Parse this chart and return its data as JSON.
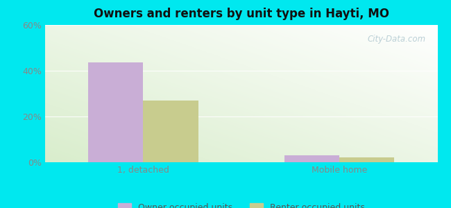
{
  "title": "Owners and renters by unit type in Hayti, MO",
  "categories": [
    "1, detached",
    "Mobile home"
  ],
  "owner_values": [
    43.5,
    3.0
  ],
  "renter_values": [
    27.0,
    2.0
  ],
  "owner_color": "#c9aed6",
  "renter_color": "#c8cc8e",
  "ylim": [
    0,
    60
  ],
  "yticks": [
    0,
    20,
    40,
    60
  ],
  "ytick_labels": [
    "0%",
    "20%",
    "40%",
    "60%"
  ],
  "background_outer": "#00e8ef",
  "bar_width": 0.28,
  "legend_owner": "Owner occupied units",
  "legend_renter": "Renter occupied units",
  "watermark": "City-Data.com",
  "grid_color": "#ffffff",
  "tick_color": "#888888"
}
